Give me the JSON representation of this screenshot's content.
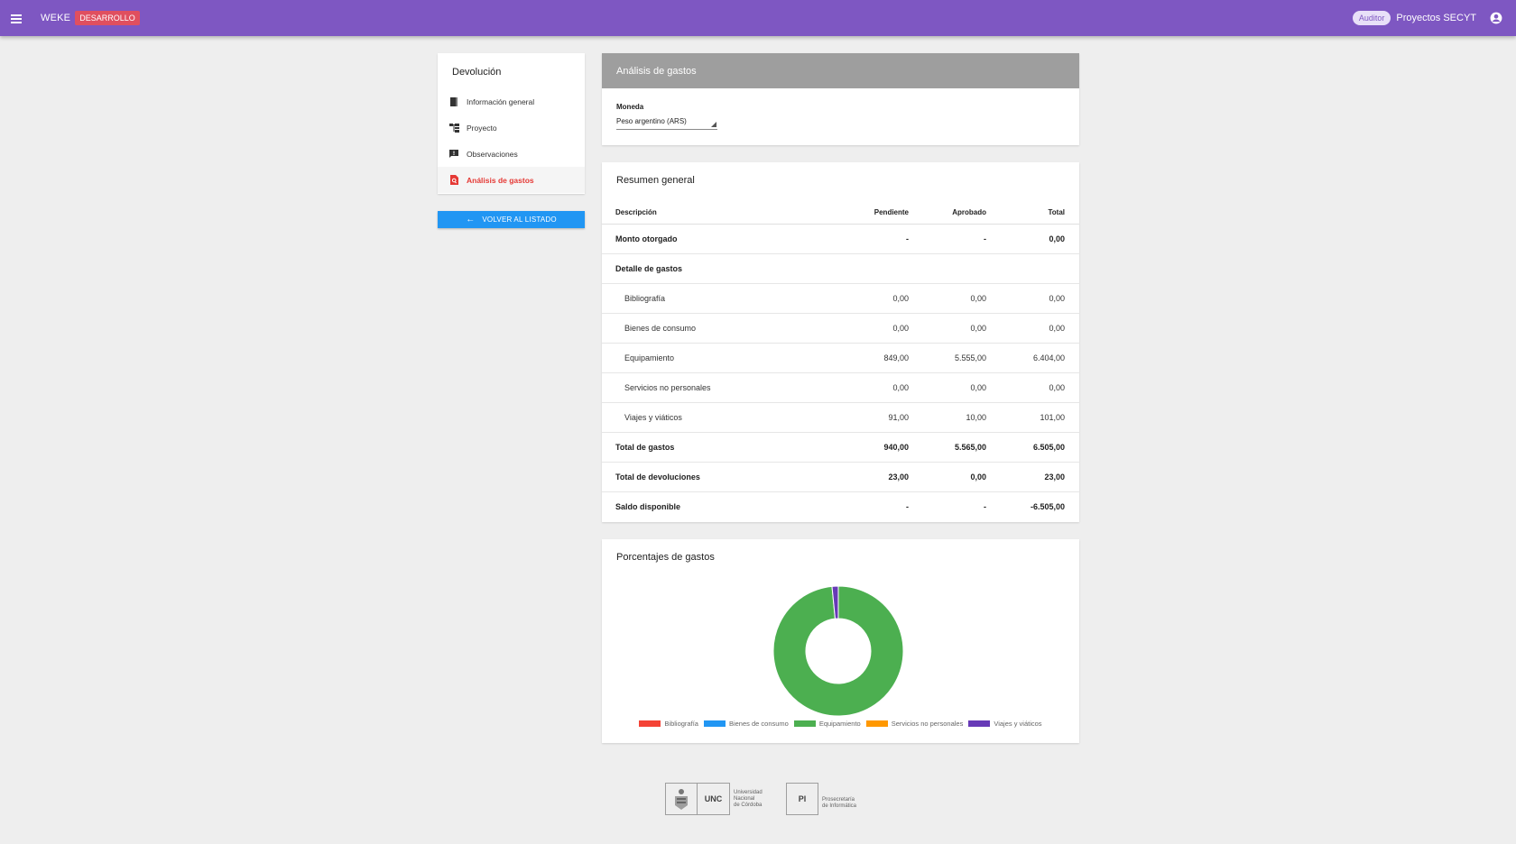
{
  "header": {
    "app_title": "WEKE",
    "env_badge": "DESARROLLO",
    "role": "Auditor",
    "user": "Proyectos SECYT",
    "bar_color": "#7e57c2"
  },
  "sidebar": {
    "title": "Devolución",
    "items": [
      {
        "label": "Información general",
        "icon": "book-icon",
        "active": false
      },
      {
        "label": "Proyecto",
        "icon": "hierarchy-icon",
        "active": false
      },
      {
        "label": "Observaciones",
        "icon": "comment-icon",
        "active": false
      },
      {
        "label": "Análisis de gastos",
        "icon": "search-document-icon",
        "active": true
      }
    ],
    "back_button": "VOLVER AL LISTADO"
  },
  "currency_card": {
    "title": "Análisis de gastos",
    "field_label": "Moneda",
    "selected_value": "Peso argentino (ARS)"
  },
  "summary": {
    "title": "Resumen general",
    "columns": [
      "Descripción",
      "Pendiente",
      "Aprobado",
      "Total"
    ],
    "rows": [
      {
        "desc": "Monto otorgado",
        "pendiente": "-",
        "aprobado": "-",
        "total": "0,00",
        "style": "bold"
      },
      {
        "desc": "Detalle de gastos",
        "pendiente": "",
        "aprobado": "",
        "total": "",
        "style": "bold"
      },
      {
        "desc": "Bibliografía",
        "pendiente": "0,00",
        "aprobado": "0,00",
        "total": "0,00",
        "style": "sub"
      },
      {
        "desc": "Bienes de consumo",
        "pendiente": "0,00",
        "aprobado": "0,00",
        "total": "0,00",
        "style": "sub"
      },
      {
        "desc": "Equipamiento",
        "pendiente": "849,00",
        "aprobado": "5.555,00",
        "total": "6.404,00",
        "style": "sub"
      },
      {
        "desc": "Servicios no personales",
        "pendiente": "0,00",
        "aprobado": "0,00",
        "total": "0,00",
        "style": "sub"
      },
      {
        "desc": "Viajes y viáticos",
        "pendiente": "91,00",
        "aprobado": "10,00",
        "total": "101,00",
        "style": "sub"
      },
      {
        "desc": "Total de gastos",
        "pendiente": "940,00",
        "aprobado": "5.565,00",
        "total": "6.505,00",
        "style": "bold"
      },
      {
        "desc": "Total de devoluciones",
        "pendiente": "23,00",
        "aprobado": "0,00",
        "total": "23,00",
        "style": "bold"
      },
      {
        "desc": "Saldo disponible",
        "pendiente": "-",
        "aprobado": "-",
        "total": "-6.505,00",
        "style": "bold"
      }
    ]
  },
  "chart_card": {
    "title": "Porcentajes de gastos"
  },
  "chart_data": {
    "type": "pie",
    "donut": true,
    "categories": [
      "Bibliografía",
      "Bienes de consumo",
      "Equipamiento",
      "Servicios no personales",
      "Viajes y viáticos"
    ],
    "values": [
      0,
      0,
      6404,
      0,
      101
    ],
    "colors": [
      "#f44336",
      "#2196f3",
      "#4caf50",
      "#ff9800",
      "#673ab7"
    ],
    "legend_position": "bottom"
  },
  "footer": {
    "unc_label": "UNC",
    "unc_text": [
      "Universidad",
      "Nacional",
      "de Córdoba"
    ],
    "pi_label": "PI",
    "pi_text": [
      "Prosecretaría",
      "de Informática"
    ]
  }
}
